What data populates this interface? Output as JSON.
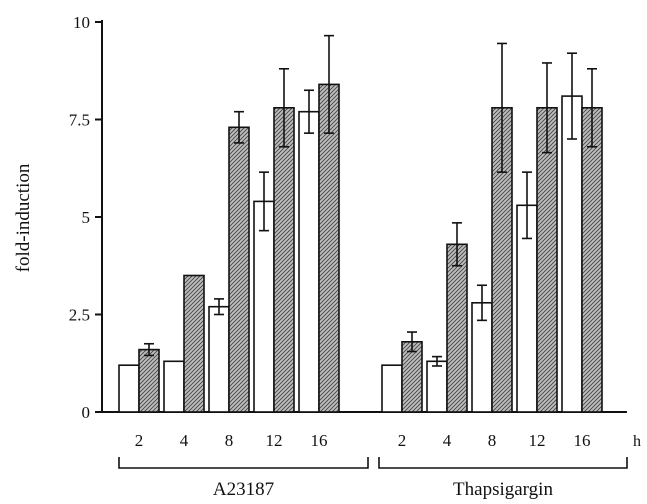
{
  "chart_data": {
    "type": "bar",
    "ylabel": "fold-induction",
    "ylim": [
      0,
      10
    ],
    "yticks": [
      0,
      2.5,
      5,
      7.5,
      10
    ],
    "ytick_labels": [
      "0",
      "2.5",
      "5",
      "7.5",
      "10"
    ],
    "x_unit_label": "h",
    "grid": false,
    "bar_colors": {
      "open": "#ffffff",
      "hatched": "#8c8c8c"
    },
    "groups": [
      {
        "name": "A23187",
        "categories": [
          "2",
          "4",
          "8",
          "12",
          "16"
        ],
        "series": [
          {
            "style": "open",
            "values": [
              1.2,
              1.3,
              2.7,
              5.4,
              7.7
            ],
            "errors": [
              0,
              0,
              0.2,
              0.75,
              0.55
            ]
          },
          {
            "style": "hatched",
            "values": [
              1.6,
              3.5,
              7.3,
              7.8,
              8.4
            ],
            "errors": [
              0.15,
              0,
              0.4,
              1.0,
              1.25
            ]
          }
        ]
      },
      {
        "name": "Thapsigargin",
        "categories": [
          "2",
          "4",
          "8",
          "12",
          "16"
        ],
        "series": [
          {
            "style": "open",
            "values": [
              1.2,
              1.3,
              2.8,
              5.3,
              8.1
            ],
            "errors": [
              0,
              0.12,
              0.45,
              0.85,
              1.1
            ]
          },
          {
            "style": "hatched",
            "values": [
              1.8,
              4.3,
              7.8,
              7.8,
              7.8
            ],
            "errors": [
              0.25,
              0.55,
              1.65,
              1.15,
              1.0
            ]
          }
        ]
      }
    ]
  }
}
